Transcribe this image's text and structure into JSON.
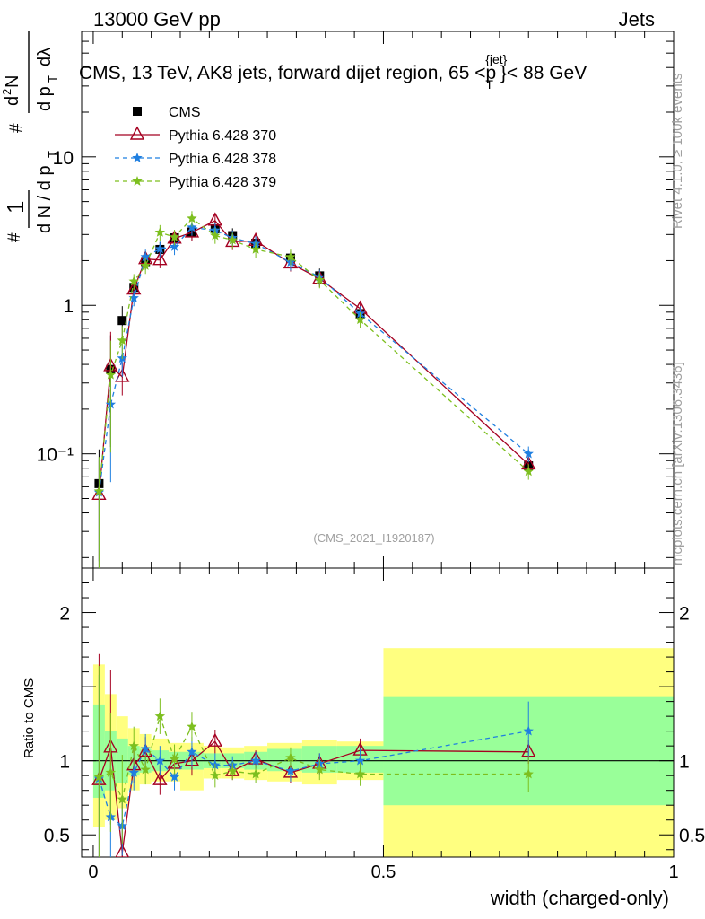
{
  "header": {
    "left": "13000 GeV pp",
    "right": "Jets"
  },
  "side_text": {
    "rivet": "Rivet 4.1.0, ≥ 100k events",
    "mcplots": "mcplots.cern.ch [arXiv:1306.3436]"
  },
  "main_title": {
    "prefix": "CMS, 13 TeV, AK8 jets, forward dijet region, 65 <p",
    "sup": "{jet}",
    "sub": "T",
    "suffix": "}< 88 GeV"
  },
  "ylabel_main": "1 / dN/dp_T d^2N/dp_T dlambda",
  "analysis_id": "(CMS_2021_I1920187)",
  "colors": {
    "cms": "#000000",
    "p370": "#a50021",
    "p378": "#1f7fe0",
    "p379": "#7dbf1f",
    "band_yellow": "#ffff80",
    "band_green": "#99ff99"
  },
  "chart_data": [
    {
      "type": "line",
      "scale": "log",
      "xlabel": "width (charged-only)",
      "ylabel": "#frac{1}{dN / dp_T}#frac{d^2N}{dp_T d#lambda}",
      "xlim": [
        -0.02,
        1.0
      ],
      "ylim": [
        0.017,
        70
      ],
      "x_ticks": [
        0,
        0.5,
        1
      ],
      "x_tick_labels": [
        "0",
        "0.5",
        "1"
      ],
      "y_ticks": [
        0.1,
        1,
        10
      ],
      "y_tick_labels": [
        "10⁻¹",
        "1",
        "10"
      ],
      "legend_position": "top-left",
      "series": [
        {
          "name": "CMS",
          "key": "cms",
          "marker": "square",
          "x": [
            0.01,
            0.03,
            0.05,
            0.07,
            0.09,
            0.115,
            0.14,
            0.17,
            0.21,
            0.24,
            0.28,
            0.34,
            0.39,
            0.46,
            0.75
          ],
          "y": [
            0.063,
            0.37,
            0.79,
            1.32,
            1.97,
            2.38,
            2.85,
            3.12,
            3.28,
            2.95,
            2.62,
            2.08,
            1.58,
            0.88,
            0.083
          ]
        },
        {
          "name": "Pythia 6.428 370",
          "key": "p370",
          "marker": "triangle",
          "x": [
            0.01,
            0.03,
            0.05,
            0.07,
            0.09,
            0.115,
            0.14,
            0.17,
            0.21,
            0.24,
            0.28,
            0.34,
            0.39,
            0.46,
            0.75
          ],
          "y": [
            0.053,
            0.39,
            0.33,
            1.28,
            2.05,
            2.02,
            2.82,
            3.1,
            3.72,
            2.68,
            2.72,
            1.92,
            1.51,
            0.95,
            0.085
          ]
        },
        {
          "name": "Pythia 6.428 378",
          "key": "p378",
          "marker": "star",
          "x": [
            0.01,
            0.03,
            0.05,
            0.07,
            0.09,
            0.115,
            0.14,
            0.17,
            0.21,
            0.24,
            0.28,
            0.34,
            0.39,
            0.46,
            0.75
          ],
          "y": [
            0.055,
            0.215,
            0.44,
            1.12,
            2.12,
            2.4,
            2.48,
            3.35,
            3.2,
            2.85,
            2.6,
            1.95,
            1.55,
            0.88,
            0.1
          ]
        },
        {
          "name": "Pythia 6.428 379",
          "key": "p379",
          "marker": "star",
          "x": [
            0.01,
            0.03,
            0.05,
            0.07,
            0.09,
            0.115,
            0.14,
            0.17,
            0.21,
            0.24,
            0.28,
            0.34,
            0.39,
            0.46,
            0.75
          ],
          "y": [
            0.056,
            0.34,
            0.58,
            1.45,
            1.85,
            3.1,
            2.88,
            3.85,
            2.95,
            2.75,
            2.38,
            2.12,
            1.48,
            0.8,
            0.076
          ]
        }
      ]
    },
    {
      "type": "line",
      "ylabel": "Ratio to CMS",
      "xlabel": "width (charged-only)",
      "xlim": [
        -0.02,
        1.0
      ],
      "ylim": [
        0.35,
        2.3
      ],
      "y_ticks": [
        0.5,
        1,
        2
      ],
      "y_tick_labels": [
        "0.5",
        "1",
        "2"
      ],
      "bands": [
        {
          "x_lo": 0.0,
          "x_hi": 0.02,
          "green": [
            0.75,
            1.38
          ],
          "yellow": [
            0.55,
            1.65
          ]
        },
        {
          "x_lo": 0.02,
          "x_hi": 0.04,
          "green": [
            0.8,
            1.2
          ],
          "yellow": [
            0.6,
            1.45
          ]
        },
        {
          "x_lo": 0.04,
          "x_hi": 0.06,
          "green": [
            0.85,
            1.15
          ],
          "yellow": [
            0.68,
            1.3
          ]
        },
        {
          "x_lo": 0.06,
          "x_hi": 0.08,
          "green": [
            0.9,
            1.1
          ],
          "yellow": [
            0.8,
            1.22
          ]
        },
        {
          "x_lo": 0.08,
          "x_hi": 0.1,
          "green": [
            0.92,
            1.08
          ],
          "yellow": [
            0.84,
            1.18
          ]
        },
        {
          "x_lo": 0.1,
          "x_hi": 0.13,
          "green": [
            0.93,
            1.07
          ],
          "yellow": [
            0.86,
            1.15
          ]
        },
        {
          "x_lo": 0.13,
          "x_hi": 0.15,
          "green": [
            0.94,
            1.06
          ],
          "yellow": [
            0.86,
            1.12
          ]
        },
        {
          "x_lo": 0.15,
          "x_hi": 0.19,
          "green": [
            0.94,
            1.06
          ],
          "yellow": [
            0.8,
            1.12
          ]
        },
        {
          "x_lo": 0.19,
          "x_hi": 0.22,
          "green": [
            0.95,
            1.05
          ],
          "yellow": [
            0.88,
            1.1
          ]
        },
        {
          "x_lo": 0.22,
          "x_hi": 0.26,
          "green": [
            0.95,
            1.05
          ],
          "yellow": [
            0.88,
            1.09
          ]
        },
        {
          "x_lo": 0.26,
          "x_hi": 0.3,
          "green": [
            0.94,
            1.06
          ],
          "yellow": [
            0.87,
            1.1
          ]
        },
        {
          "x_lo": 0.3,
          "x_hi": 0.36,
          "green": [
            0.93,
            1.08
          ],
          "yellow": [
            0.86,
            1.12
          ]
        },
        {
          "x_lo": 0.36,
          "x_hi": 0.42,
          "green": [
            0.92,
            1.1
          ],
          "yellow": [
            0.84,
            1.14
          ]
        },
        {
          "x_lo": 0.42,
          "x_hi": 0.5,
          "green": [
            0.92,
            1.1
          ],
          "yellow": [
            0.87,
            1.13
          ]
        },
        {
          "x_lo": 0.5,
          "x_hi": 1.0,
          "green": [
            0.7,
            1.43
          ],
          "yellow": [
            0.35,
            1.76
          ]
        }
      ],
      "series": [
        {
          "name": "Pythia 6.428 370",
          "key": "p370",
          "x": [
            0.01,
            0.03,
            0.05,
            0.07,
            0.09,
            0.115,
            0.14,
            0.17,
            0.21,
            0.24,
            0.28,
            0.34,
            0.39,
            0.46,
            0.75
          ],
          "y": [
            0.87,
            1.09,
            0.38,
            0.97,
            1.06,
            0.87,
            0.98,
            1.0,
            1.13,
            0.93,
            1.01,
            0.92,
            0.98,
            1.07,
            1.06
          ],
          "err": [
            0.85,
            0.52,
            0.35,
            0.12,
            0.1,
            0.1,
            0.09,
            0.1,
            0.08,
            0.06,
            0.06,
            0.07,
            0.07,
            0.08,
            0.08
          ]
        },
        {
          "name": "Pythia 6.428 378",
          "key": "p378",
          "x": [
            0.01,
            0.03,
            0.05,
            0.07,
            0.09,
            0.115,
            0.14,
            0.17,
            0.21,
            0.24,
            0.28,
            0.34,
            0.39,
            0.46,
            0.75
          ],
          "y": [
            0.88,
            0.62,
            0.56,
            0.92,
            1.08,
            1.0,
            0.89,
            1.06,
            0.97,
            0.97,
            1.0,
            0.93,
            0.98,
            1.0,
            1.2
          ],
          "err": [
            0.7,
            0.35,
            0.2,
            0.12,
            0.1,
            0.1,
            0.09,
            0.1,
            0.08,
            0.06,
            0.06,
            0.07,
            0.07,
            0.08,
            0.2
          ]
        },
        {
          "name": "Pythia 6.428 379",
          "key": "p379",
          "x": [
            0.01,
            0.03,
            0.05,
            0.07,
            0.09,
            0.115,
            0.14,
            0.17,
            0.21,
            0.24,
            0.28,
            0.34,
            0.39,
            0.46,
            0.75
          ],
          "y": [
            0.89,
            0.92,
            0.74,
            1.1,
            0.94,
            1.3,
            1.01,
            1.23,
            0.9,
            0.93,
            0.91,
            1.02,
            0.94,
            0.91,
            0.91
          ],
          "err": [
            0.75,
            0.4,
            0.3,
            0.13,
            0.1,
            0.12,
            0.1,
            0.1,
            0.08,
            0.06,
            0.06,
            0.07,
            0.07,
            0.08,
            0.12
          ]
        }
      ]
    }
  ]
}
